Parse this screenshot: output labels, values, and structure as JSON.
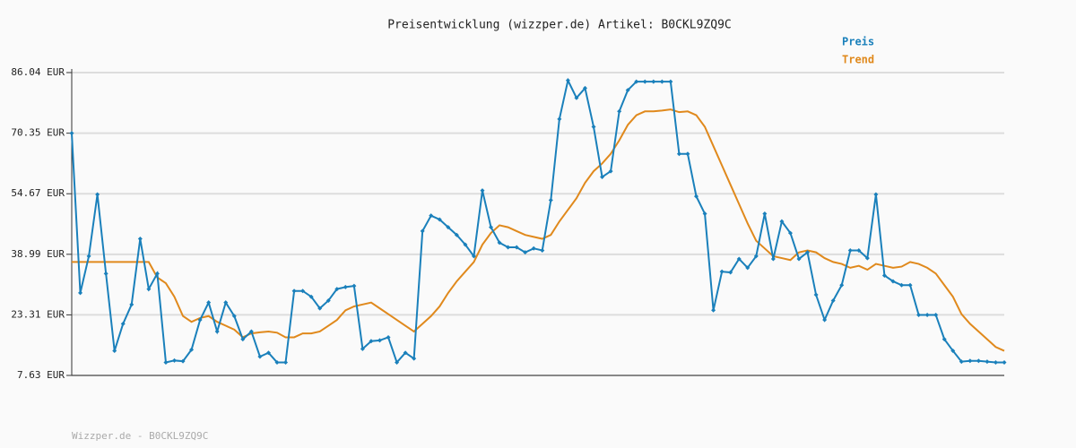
{
  "chart_data": {
    "type": "line",
    "title": "Preisentwicklung (wizzper.de) Artikel: B0CKL9ZQ9C",
    "footer": "Wizzper.de - B0CKL9ZQ9C",
    "ylim": [
      7.63,
      86.04
    ],
    "yticks": [
      {
        "value": 7.63,
        "label": "7.63 EUR"
      },
      {
        "value": 23.31,
        "label": "23.31 EUR"
      },
      {
        "value": 38.99,
        "label": "38.99 EUR"
      },
      {
        "value": 54.67,
        "label": "54.67 EUR"
      },
      {
        "value": 70.35,
        "label": "70.35 EUR"
      },
      {
        "value": 86.04,
        "label": "86.04 EUR"
      }
    ],
    "grid": true,
    "series": [
      {
        "name": "Preis",
        "color": "#1a80bb",
        "markers": true,
        "values": [
          70.35,
          29,
          38.5,
          54.5,
          34,
          14,
          21,
          26,
          43,
          30,
          34,
          11,
          11.5,
          11.3,
          14.3,
          22,
          26.5,
          19,
          26.5,
          23,
          17,
          19,
          12.5,
          13.5,
          11,
          11,
          29.5,
          29.5,
          28,
          25,
          27,
          30,
          30.5,
          30.8,
          14.5,
          16.5,
          16.7,
          17.5,
          11,
          13.5,
          12,
          45,
          49,
          48,
          46,
          44,
          41.5,
          38.5,
          55.5,
          46,
          42,
          40.8,
          40.8,
          39.5,
          40.5,
          40,
          53,
          74,
          84,
          79.5,
          82,
          72,
          59,
          60.5,
          76,
          81.5,
          83.7,
          83.7,
          83.7,
          83.7,
          83.7,
          65,
          65,
          54,
          49.5,
          24.5,
          34.5,
          34.3,
          37.8,
          35.5,
          38.5,
          49.5,
          37.8,
          47.5,
          44.5,
          37.8,
          39.5,
          28.5,
          22,
          27,
          31,
          40,
          40,
          38,
          54.5,
          33.5,
          32,
          31,
          31,
          23.3,
          23.3,
          23.3,
          17,
          14,
          11.2,
          11.4,
          11.4,
          11.2,
          11,
          11
        ]
      },
      {
        "name": "Trend",
        "color": "#e0891c",
        "markers": false,
        "values": [
          37,
          37,
          37,
          37,
          37,
          37,
          37,
          37,
          37,
          37,
          33,
          31.5,
          28,
          23,
          21.5,
          22.5,
          23,
          21.5,
          20.5,
          19.5,
          17.5,
          18.5,
          18.8,
          19,
          18.7,
          17.5,
          17.5,
          18.5,
          18.5,
          19,
          20.5,
          22,
          24.5,
          25.5,
          26,
          26.5,
          25,
          23.5,
          22,
          20.5,
          19,
          21,
          23,
          25.5,
          29,
          32,
          34.5,
          37,
          41.5,
          44.5,
          46.5,
          46,
          45,
          44,
          43.5,
          43,
          44,
          47.5,
          50.5,
          53.5,
          57.5,
          60.5,
          62.5,
          65,
          68.5,
          72.5,
          75,
          76,
          76,
          76.2,
          76.5,
          75.8,
          76,
          75,
          72,
          67,
          62,
          57,
          52,
          47,
          42.5,
          40.5,
          38.5,
          38,
          37.5,
          39.5,
          40,
          39.5,
          38,
          37,
          36.5,
          35.5,
          36,
          35,
          36.5,
          36,
          35.5,
          35.8,
          37,
          36.5,
          35.5,
          34,
          31,
          28,
          23.5,
          21,
          19,
          17,
          15,
          14
        ]
      }
    ]
  }
}
